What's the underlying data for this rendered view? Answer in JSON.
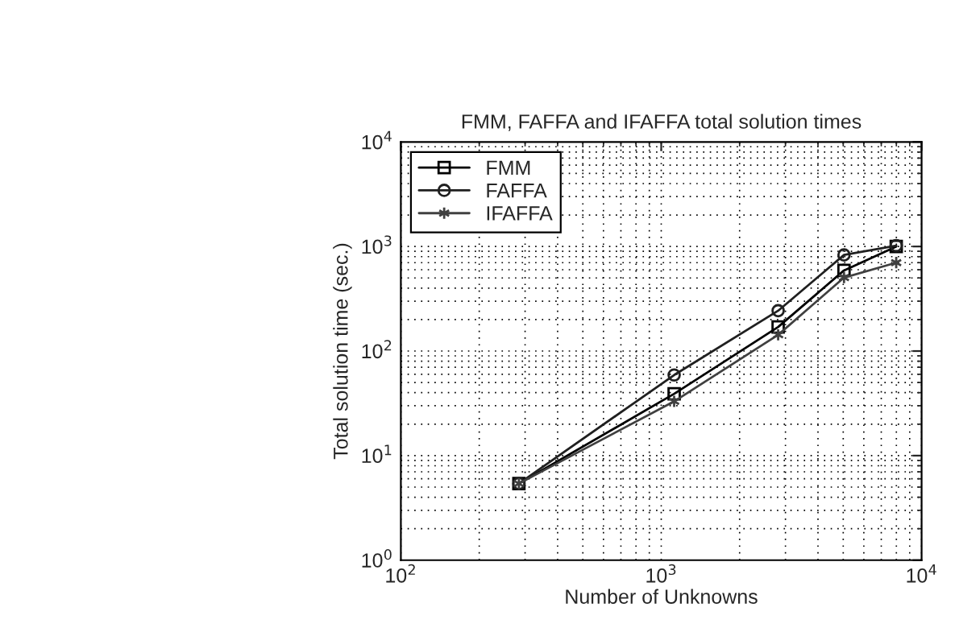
{
  "chart_data": {
    "type": "line",
    "title": "FMM, FAFFA and IFAFFA total solution times",
    "xlabel": "Number of Unknowns",
    "ylabel": "Total solution time (sec.)",
    "log": "xy",
    "grid": true,
    "legend": "top left",
    "xlim": [
      100,
      10000
    ],
    "xticks": [
      {
        "value": 100,
        "label": "10$^{2}$"
      },
      {
        "value": 1000,
        "label": "10$^{3}$"
      },
      {
        "value": 10000,
        "label": "10$^{4}$"
      }
    ],
    "ylim": [
      1,
      10000
    ],
    "yticks": [
      {
        "value": 1,
        "label": "10$^{0}$"
      },
      {
        "value": 10,
        "label": "10$^{1}$"
      },
      {
        "value": 100,
        "label": "10$^{2}$"
      },
      {
        "value": 1000,
        "label": "10$^{3}$"
      },
      {
        "value": 10000,
        "label": "10$^{4}$"
      }
    ],
    "x": [
      284,
      1121,
      2812,
      5035,
      7990
    ],
    "series": [
      {
        "name": "FMM",
        "color": "#000000",
        "marker": "square",
        "values": [
          5.4,
          39,
          170,
          590,
          1000
        ]
      },
      {
        "name": "FAFFA",
        "color": "#202020",
        "marker": "circle",
        "values": [
          5.4,
          59,
          243,
          830,
          1020
        ]
      },
      {
        "name": "IFAFFA",
        "color": "#404040",
        "marker": "cross",
        "values": [
          5.4,
          33,
          143,
          504,
          700
        ]
      }
    ]
  }
}
